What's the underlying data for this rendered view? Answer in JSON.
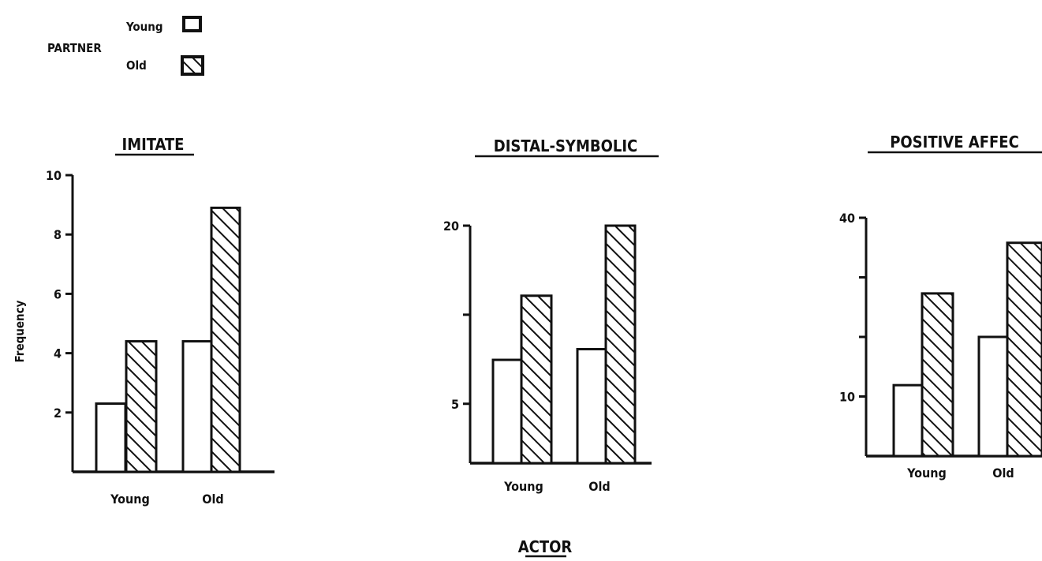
{
  "legend": {
    "title": "PARTNER",
    "items": [
      {
        "label": "Young",
        "fill": "plain"
      },
      {
        "label": "Old",
        "fill": "hatched"
      }
    ]
  },
  "ylabel": "Frequency",
  "xlabel": "ACTOR",
  "colors": {
    "ink": "#111111",
    "background": "#ffffff"
  },
  "chart_data": [
    {
      "type": "bar",
      "title": "IMITATE",
      "categories": [
        "Young",
        "Old"
      ],
      "series": [
        {
          "name": "Young",
          "values": [
            2.3,
            4.4
          ]
        },
        {
          "name": "Old",
          "values": [
            4.4,
            8.9
          ]
        }
      ],
      "ylabel": "Frequency",
      "ylim": [
        0,
        10
      ],
      "yticks": [
        2,
        4,
        6,
        8,
        10
      ],
      "ytick_labels": [
        "2",
        "4",
        "6",
        "8",
        "10"
      ]
    },
    {
      "type": "bar",
      "title": "DISTAL-SYMBOLIC",
      "categories": [
        "Young",
        "Old"
      ],
      "series": [
        {
          "name": "Young",
          "values": [
            8.7,
            9.6
          ]
        },
        {
          "name": "Old",
          "values": [
            14.1,
            20
          ]
        }
      ],
      "ylim": [
        0,
        20
      ],
      "yticks": [
        5,
        12.5,
        20
      ],
      "ytick_labels": [
        "5",
        "",
        "20"
      ]
    },
    {
      "type": "bar",
      "title": "POSITIVE AFFEC",
      "categories": [
        "Young",
        "Old"
      ],
      "series": [
        {
          "name": "Young",
          "values": [
            11.9,
            20
          ]
        },
        {
          "name": "Old",
          "values": [
            27.3,
            35.8
          ]
        }
      ],
      "ylim": [
        0,
        40
      ],
      "yticks": [
        10,
        20,
        30,
        40
      ],
      "ytick_labels": [
        "10",
        "",
        "",
        "40"
      ]
    }
  ]
}
